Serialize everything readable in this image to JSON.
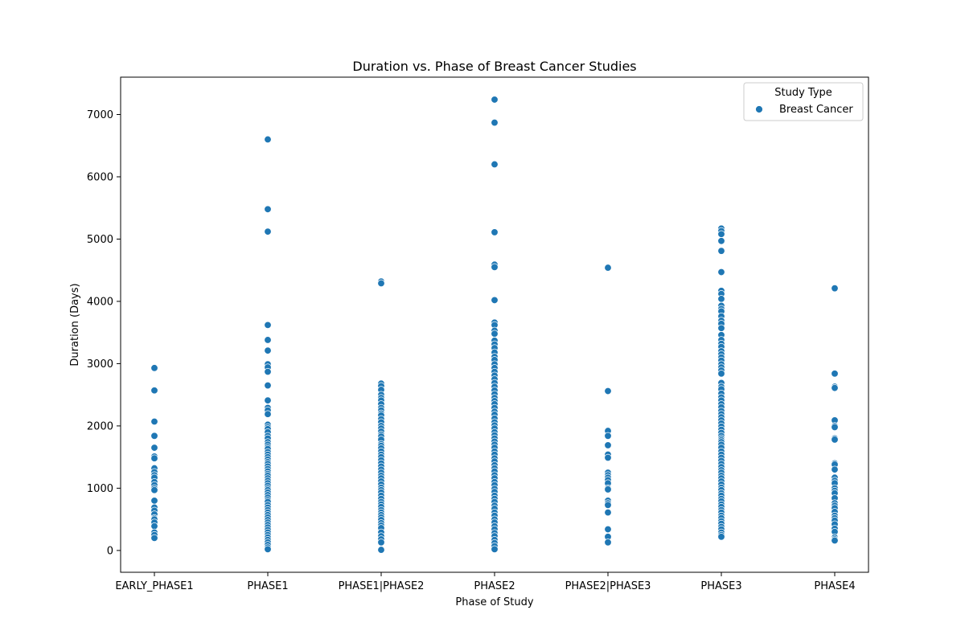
{
  "chart_data": {
    "type": "scatter",
    "title": "Duration vs. Phase of Breast Cancer Studies",
    "xlabel": "Phase of Study",
    "ylabel": "Duration (Days)",
    "categories": [
      "EARLY_PHASE1",
      "PHASE1",
      "PHASE1|PHASE2",
      "PHASE2",
      "PHASE2|PHASE3",
      "PHASE3",
      "PHASE4"
    ],
    "yticks": [
      0,
      1000,
      2000,
      3000,
      4000,
      5000,
      6000,
      7000
    ],
    "ylim": [
      -350,
      7600
    ],
    "grid": false,
    "legend": {
      "title": "Study Type",
      "placement": "top-right",
      "entries": [
        {
          "label": "Breast Cancer",
          "color": "#1f77b4"
        }
      ]
    },
    "marker_color": "#1f77b4",
    "series": [
      {
        "name": "Breast Cancer",
        "points": [
          {
            "x": "EARLY_PHASE1",
            "y": [
              2930,
              2570,
              2070,
              1840,
              1650,
              1510,
              1480,
              1320,
              1260,
              1210,
              1170,
              1100,
              1050,
              1000,
              970,
              800,
              690,
              640,
              580,
              520,
              500,
              450,
              390,
              290,
              250,
              200
            ]
          },
          {
            "x": "PHASE1",
            "y": [
              6600,
              5480,
              5120,
              3620,
              3380,
              3210,
              2990,
              2940,
              2870,
              2650,
              2410,
              2290,
              2250,
              2190,
              2020,
              1980,
              1950,
              1900,
              1840,
              1800,
              1740,
              1700,
              1660,
              1630,
              1580,
              1540,
              1500,
              1460,
              1420,
              1390,
              1350,
              1310,
              1270,
              1230,
              1200,
              1160,
              1120,
              1080,
              1040,
              1000,
              970,
              930,
              890,
              850,
              810,
              780,
              730,
              690,
              650,
              610,
              570,
              530,
              490,
              450,
              410,
              370,
              330,
              290,
              250,
              210,
              170,
              130,
              90,
              50,
              20
            ]
          },
          {
            "x": "PHASE1|PHASE2",
            "y": [
              4320,
              4290,
              2680,
              2640,
              2580,
              2500,
              2450,
              2410,
              2350,
              2290,
              2250,
              2200,
              2170,
              2110,
              2060,
              2000,
              1960,
              1910,
              1860,
              1830,
              1780,
              1710,
              1680,
              1640,
              1590,
              1540,
              1500,
              1450,
              1400,
              1350,
              1300,
              1250,
              1200,
              1160,
              1110,
              1060,
              1010,
              970,
              930,
              880,
              830,
              780,
              740,
              700,
              650,
              610,
              570,
              530,
              490,
              440,
              400,
              360,
              290,
              230,
              180,
              130,
              10
            ]
          },
          {
            "x": "PHASE2",
            "y": [
              7240,
              6870,
              6200,
              5110,
              4590,
              4550,
              4020,
              3660,
              3620,
              3530,
              3480,
              3370,
              3310,
              3250,
              3180,
              3110,
              3060,
              2990,
              2930,
              2870,
              2810,
              2750,
              2690,
              2630,
              2570,
              2510,
              2450,
              2400,
              2350,
              2290,
              2230,
              2180,
              2120,
              2060,
              2010,
              1960,
              1900,
              1850,
              1800,
              1750,
              1700,
              1650,
              1590,
              1540,
              1480,
              1430,
              1370,
              1320,
              1270,
              1210,
              1160,
              1100,
              1050,
              990,
              940,
              880,
              830,
              780,
              720,
              670,
              610,
              560,
              500,
              450,
              390,
              340,
              280,
              230,
              170,
              120,
              70,
              20
            ]
          },
          {
            "x": "PHASE2|PHASE3",
            "y": [
              4540,
              2560,
              1920,
              1840,
              1690,
              1540,
              1490,
              1250,
              1210,
              1170,
              1130,
              1080,
              1000,
              980,
              800,
              760,
              730,
              610,
              340,
              220,
              130
            ]
          },
          {
            "x": "PHASE3",
            "y": [
              5170,
              5130,
              5080,
              4970,
              4810,
              4470,
              4170,
              4120,
              4040,
              3930,
              3880,
              3840,
              3760,
              3690,
              3640,
              3570,
              3460,
              3380,
              3320,
              3270,
              3200,
              3150,
              3100,
              3050,
              2990,
              2940,
              2890,
              2840,
              2690,
              2630,
              2590,
              2520,
              2460,
              2410,
              2350,
              2300,
              2240,
              2190,
              2140,
              2090,
              2040,
              1990,
              1940,
              1890,
              1840,
              1800,
              1770,
              1740,
              1700,
              1650,
              1590,
              1540,
              1490,
              1440,
              1390,
              1340,
              1290,
              1250,
              1200,
              1160,
              1110,
              1060,
              1010,
              970,
              920,
              880,
              830,
              790,
              740,
              700,
              650,
              610,
              560,
              520,
              470,
              430,
              380,
              340,
              290,
              250,
              220
            ]
          },
          {
            "x": "PHASE4",
            "y": [
              4210,
              2840,
              2630,
              2610,
              2090,
              2000,
              1980,
              1800,
              1780,
              1400,
              1380,
              1300,
              1170,
              1120,
              1080,
              1000,
              960,
              920,
              840,
              760,
              720,
              680,
              620,
              560,
              520,
              480,
              420,
              350,
              300,
              210,
              180,
              160
            ]
          }
        ]
      }
    ]
  }
}
